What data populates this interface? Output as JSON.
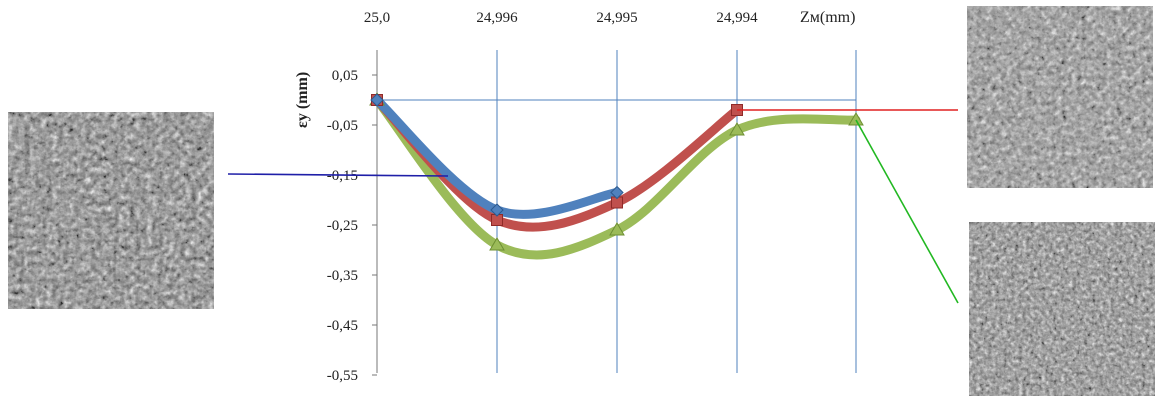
{
  "chart_data": {
    "type": "line",
    "title": "",
    "xlabel": "Zм(mm)",
    "ylabel": "εy (mm)",
    "x_axis_position": "top",
    "categories": [
      "25,0",
      "24,996",
      "24,995",
      "24,994",
      ""
    ],
    "yticks": [
      "0,05",
      "-0,05",
      "-0,15",
      "-0,25",
      "-0,35",
      "-0,45",
      "-0,55"
    ],
    "ylim": [
      -0.55,
      0.05
    ],
    "grid": true,
    "series": [
      {
        "color": "#4f81bd",
        "marker": "diamond",
        "values": [
          0.0,
          -0.22,
          -0.185,
          null,
          null
        ]
      },
      {
        "color": "#c0504d",
        "marker": "square",
        "values": [
          0.0,
          -0.24,
          -0.205,
          -0.02,
          null
        ]
      },
      {
        "color": "#9bbb59",
        "marker": "triangle",
        "values": [
          0.0,
          -0.29,
          -0.26,
          -0.06,
          -0.04
        ]
      }
    ],
    "reference_line_value": 0.0,
    "reference_line_color": "#4f81bd"
  },
  "micrographs": [
    {
      "name": "micrograph-left",
      "connector_color": "#1f1fa8"
    },
    {
      "name": "micrograph-top-right",
      "connector_color": "#e02020"
    },
    {
      "name": "micrograph-bottom-right",
      "connector_color": "#22b822"
    }
  ]
}
